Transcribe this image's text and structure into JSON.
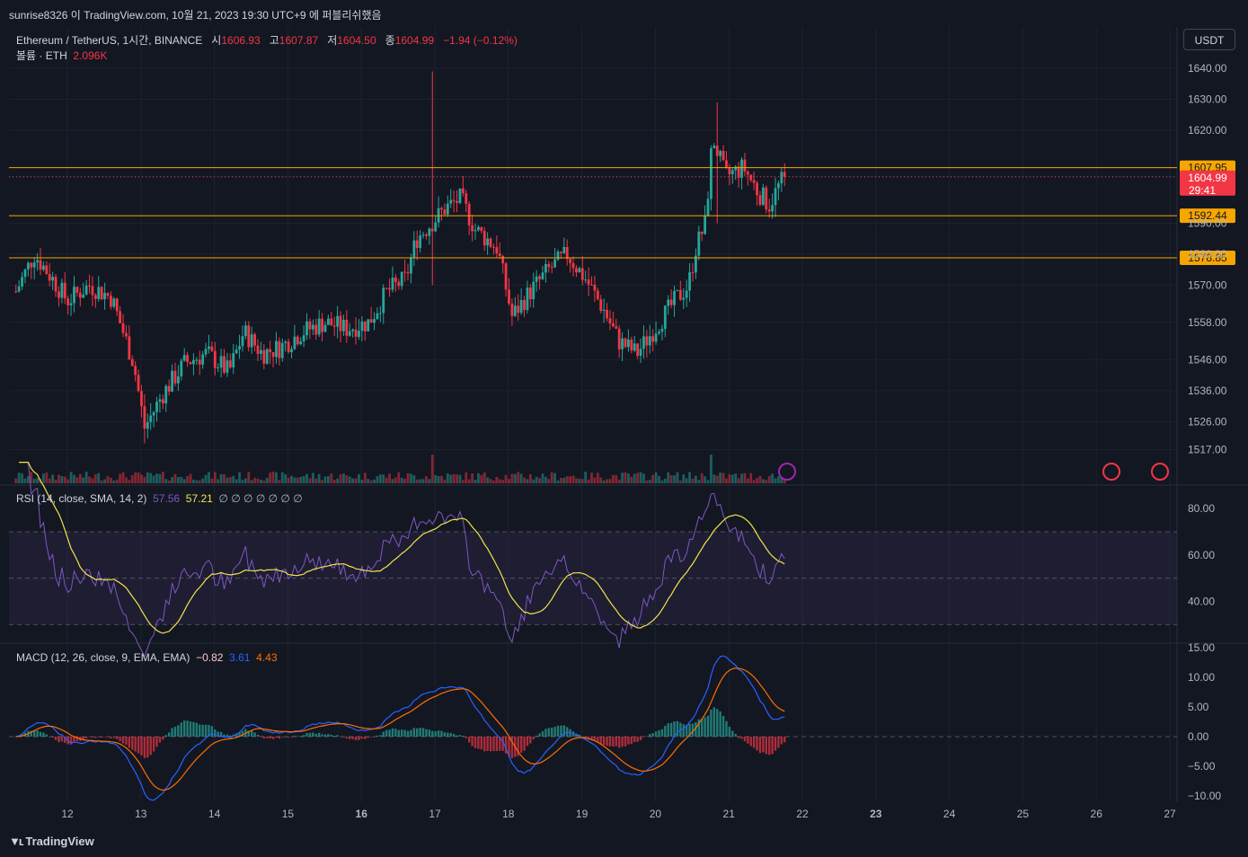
{
  "header": {
    "text": "sunrise8326 이 TradingView.com, 10월 21, 2023 19:30 UTC+9 에 퍼블리쉬했음"
  },
  "legend": {
    "symbol": "Ethereum / TetherUS, 1시간, BINANCE",
    "open_label": "시",
    "open": "1606.93",
    "high_label": "고",
    "high": "1607.87",
    "low_label": "저",
    "low": "1604.50",
    "close_label": "종",
    "close": "1604.99",
    "change": "−1.94 (−0.12%)",
    "volume_label": "볼륨 · ETH",
    "volume": "2.096K"
  },
  "currency_button": "USDT",
  "brand": "TradingView",
  "colors": {
    "background": "#131722",
    "up": "#26a69a",
    "down": "#f23645",
    "level": "#f7a600",
    "rsi": "#7e57c2",
    "rsi_ma": "#f2e34c",
    "macd": "#2962ff",
    "signal": "#ff6d00"
  },
  "price_axis": {
    "ticks": [
      1640,
      1630,
      1620,
      1604.99,
      1590,
      1580,
      1570,
      1558,
      1546,
      1536,
      1526,
      1517
    ],
    "tick_labels": [
      "1640.00",
      "1630.00",
      "1620.00",
      "",
      "1590.00",
      "1580.00",
      "1570.00",
      "1558.00",
      "1546.00",
      "1536.00",
      "1526.00",
      "1517.00"
    ]
  },
  "price_levels": [
    {
      "value": 1607.95,
      "label": "1607.95"
    },
    {
      "value": 1592.44,
      "label": "1592.44"
    },
    {
      "value": 1578.85,
      "label": "1578.85"
    }
  ],
  "last_price": {
    "value": 1604.99,
    "label": "1604.99",
    "countdown": "29:41"
  },
  "rsi": {
    "legend": "RSI (14, close, SMA, 14, 2)",
    "value": "57.56",
    "ma_value": "57.21",
    "extra": "∅ ∅ ∅ ∅ ∅ ∅ ∅",
    "ticks": [
      "80.00",
      "60.00",
      "40.00"
    ],
    "upper": 70,
    "middle": 50,
    "lower": 30
  },
  "macd": {
    "legend": "MACD (12, 26, close, 9, EMA, EMA)",
    "hist_value": "−0.82",
    "macd_value": "3.61",
    "signal_value": "4.43",
    "ticks": [
      "15.00",
      "10.00",
      "5.00",
      "0.00",
      "−5.00",
      "−10.00"
    ]
  },
  "x_axis": {
    "labels": [
      "12",
      "13",
      "14",
      "15",
      "16",
      "17",
      "18",
      "19",
      "20",
      "21",
      "22",
      "23",
      "24",
      "25",
      "26",
      "27"
    ],
    "bold": [
      "16",
      "23"
    ]
  },
  "chart_data": {
    "type": "candlestick",
    "interval": "1h",
    "x_unit": "day of October 2023",
    "x_range": [
      11.3,
      27
    ],
    "ylim": [
      1510,
      1645
    ],
    "key_points": [
      {
        "x": 11.3,
        "close": 1568
      },
      {
        "x": 11.55,
        "close": 1580
      },
      {
        "x": 11.8,
        "close": 1572
      },
      {
        "x": 12.0,
        "close": 1565
      },
      {
        "x": 12.3,
        "close": 1570
      },
      {
        "x": 12.6,
        "close": 1566
      },
      {
        "x": 12.9,
        "close": 1545
      },
      {
        "x": 13.05,
        "close": 1524
      },
      {
        "x": 13.3,
        "close": 1535
      },
      {
        "x": 13.6,
        "close": 1545
      },
      {
        "x": 13.9,
        "close": 1548
      },
      {
        "x": 14.2,
        "close": 1542
      },
      {
        "x": 14.4,
        "close": 1555
      },
      {
        "x": 14.65,
        "close": 1548
      },
      {
        "x": 14.9,
        "close": 1550
      },
      {
        "x": 15.2,
        "close": 1555
      },
      {
        "x": 15.5,
        "close": 1558
      },
      {
        "x": 15.8,
        "close": 1556
      },
      {
        "x": 16.1,
        "close": 1558
      },
      {
        "x": 16.35,
        "close": 1568
      },
      {
        "x": 16.6,
        "close": 1572
      },
      {
        "x": 16.75,
        "close": 1585
      },
      {
        "x": 16.95,
        "close": 1590
      },
      {
        "x": 17.15,
        "close": 1595
      },
      {
        "x": 17.35,
        "close": 1598
      },
      {
        "x": 17.55,
        "close": 1588
      },
      {
        "x": 17.85,
        "close": 1582
      },
      {
        "x": 18.05,
        "close": 1560
      },
      {
        "x": 18.3,
        "close": 1568
      },
      {
        "x": 18.55,
        "close": 1575
      },
      {
        "x": 18.8,
        "close": 1580
      },
      {
        "x": 19.05,
        "close": 1572
      },
      {
        "x": 19.3,
        "close": 1562
      },
      {
        "x": 19.5,
        "close": 1552
      },
      {
        "x": 19.75,
        "close": 1548
      },
      {
        "x": 20.05,
        "close": 1558
      },
      {
        "x": 20.3,
        "close": 1566
      },
      {
        "x": 20.45,
        "close": 1570
      },
      {
        "x": 20.55,
        "close": 1582
      },
      {
        "x": 20.68,
        "close": 1590
      },
      {
        "x": 20.78,
        "close": 1618
      },
      {
        "x": 20.95,
        "close": 1605
      },
      {
        "x": 21.2,
        "close": 1608
      },
      {
        "x": 21.4,
        "close": 1600
      },
      {
        "x": 21.55,
        "close": 1596
      },
      {
        "x": 21.7,
        "close": 1603
      },
      {
        "x": 21.78,
        "close": 1604.99
      }
    ],
    "spikes": [
      {
        "x": 16.95,
        "high": 1639,
        "low": 1570
      },
      {
        "x": 20.85,
        "high": 1629,
        "low": 1590
      },
      {
        "x": 13.05,
        "high": 1524,
        "low": 1519
      }
    ],
    "volume_spike_x": [
      16.95,
      20.75
    ]
  }
}
